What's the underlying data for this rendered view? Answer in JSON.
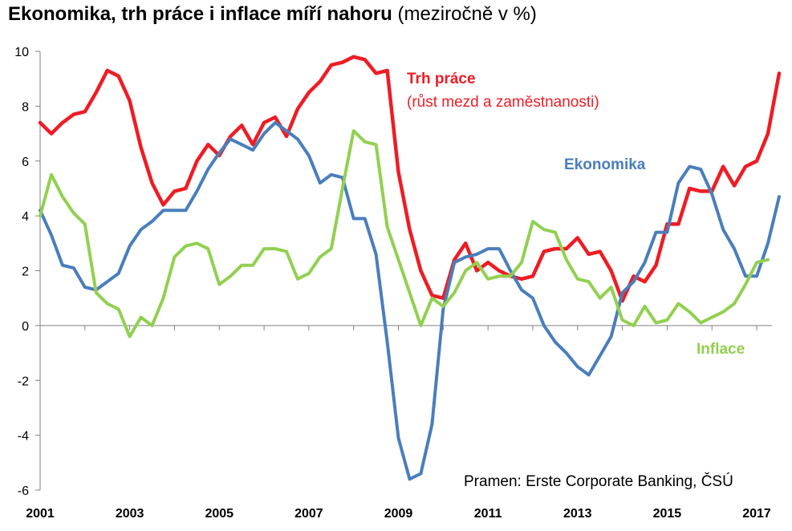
{
  "title_bold": "Ekonomika, trh práce i inflace míří nahoru",
  "title_sub": "(meziročně v %)",
  "source": "Pramen: Erste Corporate Banking, ČSÚ",
  "annotations": {
    "trh": "Trh práce",
    "trh_sub": "(růst mezd a zaměstnanosti)",
    "ekonomika": "Ekonomika",
    "inflace": "Inflace"
  },
  "colors": {
    "trh": "#ee1c24",
    "ekonomika": "#4a7ebb",
    "inflace": "#92d050",
    "axis": "#7f7f7f"
  },
  "chart_data": {
    "type": "line",
    "title": "Ekonomika, trh práce i inflace míří nahoru (meziročně v %)",
    "ylim": [
      -6,
      10
    ],
    "yticks": [
      -6,
      -4,
      -2,
      0,
      2,
      4,
      6,
      8,
      10
    ],
    "xlim": [
      2001.0,
      2017.25
    ],
    "xticks": [
      "2001",
      "2003",
      "2005",
      "2007",
      "2009",
      "2011",
      "2013",
      "2015",
      "2017"
    ],
    "grid": false,
    "series": [
      {
        "name": "Trh práce",
        "key": "trh",
        "width": 4.5,
        "points": [
          [
            2001.0,
            7.4
          ],
          [
            2001.25,
            7.0
          ],
          [
            2001.5,
            7.4
          ],
          [
            2001.75,
            7.7
          ],
          [
            2002.0,
            7.8
          ],
          [
            2002.25,
            8.5
          ],
          [
            2002.5,
            9.3
          ],
          [
            2002.75,
            9.1
          ],
          [
            2003.0,
            8.2
          ],
          [
            2003.25,
            6.5
          ],
          [
            2003.5,
            5.2
          ],
          [
            2003.75,
            4.4
          ],
          [
            2004.0,
            4.9
          ],
          [
            2004.25,
            5.0
          ],
          [
            2004.5,
            6.0
          ],
          [
            2004.75,
            6.6
          ],
          [
            2005.0,
            6.2
          ],
          [
            2005.25,
            6.9
          ],
          [
            2005.5,
            7.3
          ],
          [
            2005.75,
            6.6
          ],
          [
            2006.0,
            7.4
          ],
          [
            2006.25,
            7.6
          ],
          [
            2006.5,
            6.9
          ],
          [
            2006.75,
            7.9
          ],
          [
            2007.0,
            8.5
          ],
          [
            2007.25,
            8.9
          ],
          [
            2007.5,
            9.5
          ],
          [
            2007.75,
            9.6
          ],
          [
            2008.0,
            9.8
          ],
          [
            2008.25,
            9.7
          ],
          [
            2008.5,
            9.2
          ],
          [
            2008.75,
            9.3
          ],
          [
            2009.0,
            5.6
          ],
          [
            2009.25,
            3.5
          ],
          [
            2009.5,
            2.0
          ],
          [
            2009.75,
            1.1
          ],
          [
            2010.0,
            1.0
          ],
          [
            2010.25,
            2.4
          ],
          [
            2010.5,
            3.0
          ],
          [
            2010.75,
            2.0
          ],
          [
            2011.0,
            2.3
          ],
          [
            2011.25,
            2.0
          ],
          [
            2011.5,
            1.8
          ],
          [
            2011.75,
            1.7
          ],
          [
            2012.0,
            1.8
          ],
          [
            2012.25,
            2.7
          ],
          [
            2012.5,
            2.8
          ],
          [
            2012.75,
            2.8
          ],
          [
            2013.0,
            3.2
          ],
          [
            2013.25,
            2.6
          ],
          [
            2013.5,
            2.7
          ],
          [
            2013.75,
            2.0
          ],
          [
            2014.0,
            0.9
          ],
          [
            2014.25,
            1.8
          ],
          [
            2014.5,
            1.6
          ],
          [
            2014.75,
            2.2
          ],
          [
            2015.0,
            3.7
          ],
          [
            2015.25,
            3.7
          ],
          [
            2015.5,
            5.0
          ],
          [
            2015.75,
            4.9
          ],
          [
            2016.0,
            4.9
          ],
          [
            2016.25,
            5.8
          ],
          [
            2016.5,
            5.1
          ],
          [
            2016.75,
            5.8
          ],
          [
            2017.0,
            6.0
          ],
          [
            2017.25,
            7.0
          ],
          [
            2017.5,
            9.2
          ]
        ]
      },
      {
        "name": "Ekonomika",
        "key": "ekonomika",
        "width": 4,
        "points": [
          [
            2001.0,
            4.2
          ],
          [
            2001.25,
            3.3
          ],
          [
            2001.5,
            2.2
          ],
          [
            2001.75,
            2.1
          ],
          [
            2002.0,
            1.4
          ],
          [
            2002.25,
            1.3
          ],
          [
            2002.5,
            1.6
          ],
          [
            2002.75,
            1.9
          ],
          [
            2003.0,
            2.9
          ],
          [
            2003.25,
            3.5
          ],
          [
            2003.5,
            3.8
          ],
          [
            2003.75,
            4.2
          ],
          [
            2004.0,
            4.2
          ],
          [
            2004.25,
            4.2
          ],
          [
            2004.5,
            4.9
          ],
          [
            2004.75,
            5.7
          ],
          [
            2005.0,
            6.3
          ],
          [
            2005.25,
            6.8
          ],
          [
            2005.5,
            6.6
          ],
          [
            2005.75,
            6.4
          ],
          [
            2006.0,
            7.0
          ],
          [
            2006.25,
            7.4
          ],
          [
            2006.5,
            7.1
          ],
          [
            2006.75,
            6.8
          ],
          [
            2007.0,
            6.2
          ],
          [
            2007.25,
            5.2
          ],
          [
            2007.5,
            5.5
          ],
          [
            2007.75,
            5.4
          ],
          [
            2008.0,
            3.9
          ],
          [
            2008.25,
            3.9
          ],
          [
            2008.5,
            2.6
          ],
          [
            2008.75,
            -0.6
          ],
          [
            2009.0,
            -4.1
          ],
          [
            2009.25,
            -5.6
          ],
          [
            2009.5,
            -5.4
          ],
          [
            2009.75,
            -3.6
          ],
          [
            2010.0,
            0.6
          ],
          [
            2010.25,
            2.3
          ],
          [
            2010.5,
            2.5
          ],
          [
            2010.75,
            2.6
          ],
          [
            2011.0,
            2.8
          ],
          [
            2011.25,
            2.8
          ],
          [
            2011.5,
            2.0
          ],
          [
            2011.75,
            1.3
          ],
          [
            2012.0,
            1.0
          ],
          [
            2012.25,
            0.0
          ],
          [
            2012.5,
            -0.6
          ],
          [
            2012.75,
            -1.0
          ],
          [
            2013.0,
            -1.5
          ],
          [
            2013.25,
            -1.8
          ],
          [
            2013.5,
            -1.1
          ],
          [
            2013.75,
            -0.4
          ],
          [
            2014.0,
            1.2
          ],
          [
            2014.25,
            1.6
          ],
          [
            2014.5,
            2.3
          ],
          [
            2014.75,
            3.4
          ],
          [
            2015.0,
            3.4
          ],
          [
            2015.25,
            5.2
          ],
          [
            2015.5,
            5.8
          ],
          [
            2015.75,
            5.7
          ],
          [
            2016.0,
            4.8
          ],
          [
            2016.25,
            3.5
          ],
          [
            2016.5,
            2.8
          ],
          [
            2016.75,
            1.8
          ],
          [
            2017.0,
            1.8
          ],
          [
            2017.25,
            3.0
          ],
          [
            2017.5,
            4.7
          ]
        ]
      },
      {
        "name": "Inflace",
        "key": "inflace",
        "width": 4,
        "points": [
          [
            2001.0,
            4.0
          ],
          [
            2001.25,
            5.5
          ],
          [
            2001.5,
            4.7
          ],
          [
            2001.75,
            4.1
          ],
          [
            2002.0,
            3.7
          ],
          [
            2002.25,
            1.2
          ],
          [
            2002.5,
            0.8
          ],
          [
            2002.75,
            0.6
          ],
          [
            2003.0,
            -0.4
          ],
          [
            2003.25,
            0.3
          ],
          [
            2003.5,
            0.0
          ],
          [
            2003.75,
            1.0
          ],
          [
            2004.0,
            2.5
          ],
          [
            2004.25,
            2.9
          ],
          [
            2004.5,
            3.0
          ],
          [
            2004.75,
            2.8
          ],
          [
            2005.0,
            1.5
          ],
          [
            2005.25,
            1.8
          ],
          [
            2005.5,
            2.2
          ],
          [
            2005.75,
            2.2
          ],
          [
            2006.0,
            2.8
          ],
          [
            2006.25,
            2.8
          ],
          [
            2006.5,
            2.7
          ],
          [
            2006.75,
            1.7
          ],
          [
            2007.0,
            1.9
          ],
          [
            2007.25,
            2.5
          ],
          [
            2007.5,
            2.8
          ],
          [
            2007.75,
            5.0
          ],
          [
            2008.0,
            7.1
          ],
          [
            2008.25,
            6.7
          ],
          [
            2008.5,
            6.6
          ],
          [
            2008.75,
            3.6
          ],
          [
            2009.0,
            2.4
          ],
          [
            2009.25,
            1.2
          ],
          [
            2009.5,
            0.0
          ],
          [
            2009.75,
            1.0
          ],
          [
            2010.0,
            0.7
          ],
          [
            2010.25,
            1.2
          ],
          [
            2010.5,
            2.0
          ],
          [
            2010.75,
            2.3
          ],
          [
            2011.0,
            1.7
          ],
          [
            2011.25,
            1.8
          ],
          [
            2011.5,
            1.8
          ],
          [
            2011.75,
            2.3
          ],
          [
            2012.0,
            3.8
          ],
          [
            2012.25,
            3.5
          ],
          [
            2012.5,
            3.4
          ],
          [
            2012.75,
            2.4
          ],
          [
            2013.0,
            1.7
          ],
          [
            2013.25,
            1.6
          ],
          [
            2013.5,
            1.0
          ],
          [
            2013.75,
            1.4
          ],
          [
            2014.0,
            0.2
          ],
          [
            2014.25,
            0.0
          ],
          [
            2014.5,
            0.7
          ],
          [
            2014.75,
            0.1
          ],
          [
            2015.0,
            0.2
          ],
          [
            2015.25,
            0.8
          ],
          [
            2015.5,
            0.5
          ],
          [
            2015.75,
            0.1
          ],
          [
            2016.0,
            0.3
          ],
          [
            2016.25,
            0.5
          ],
          [
            2016.5,
            0.8
          ],
          [
            2016.75,
            1.5
          ],
          [
            2017.0,
            2.3
          ],
          [
            2017.25,
            2.4
          ]
        ]
      }
    ]
  }
}
